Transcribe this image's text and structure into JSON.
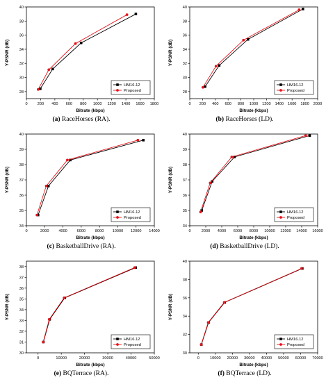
{
  "colors": {
    "hm": "#000000",
    "proposed": "#e8141c",
    "axis": "#000000"
  },
  "chart_data": [
    {
      "type": "line",
      "subplot_letter": "(a)",
      "caption": "RaceHorses (RA).",
      "xlabel": "Bitrate (kbps)",
      "ylabel": "Y-PSNR (dB)",
      "xlim": [
        0,
        1800
      ],
      "ylim": [
        27,
        40
      ],
      "xticks": [
        0,
        200,
        400,
        600,
        800,
        1000,
        1200,
        1400,
        1600,
        1800
      ],
      "yticks": [
        28,
        30,
        32,
        34,
        36,
        38,
        40
      ],
      "legend": "bottom-right",
      "series": [
        {
          "name": "HM16.12",
          "marker": "square",
          "x": [
            195,
            370,
            770,
            1540
          ],
          "y": [
            28.4,
            31.2,
            34.9,
            39.0
          ]
        },
        {
          "name": "Proposed",
          "marker": "circle",
          "x": [
            165,
            315,
            690,
            1415
          ],
          "y": [
            28.3,
            31.1,
            34.8,
            38.9
          ]
        }
      ]
    },
    {
      "type": "line",
      "subplot_letter": "(b)",
      "caption": "RaceHorses (LD).",
      "xlabel": "Bitrate (kbps)",
      "ylabel": "Y-PSNR (dB)",
      "xlim": [
        0,
        2000
      ],
      "ylim": [
        27,
        40
      ],
      "xticks": [
        0,
        200,
        400,
        600,
        800,
        1000,
        1200,
        1400,
        1600,
        1800,
        2000
      ],
      "yticks": [
        28,
        30,
        32,
        34,
        36,
        38,
        40
      ],
      "legend": "bottom-right",
      "series": [
        {
          "name": "HM16.12",
          "marker": "square",
          "x": [
            240,
            460,
            910,
            1770
          ],
          "y": [
            28.7,
            31.7,
            35.4,
            39.7
          ]
        },
        {
          "name": "Proposed",
          "marker": "circle",
          "x": [
            205,
            410,
            840,
            1710
          ],
          "y": [
            28.6,
            31.6,
            35.3,
            39.6
          ]
        }
      ]
    },
    {
      "type": "line",
      "subplot_letter": "(c)",
      "caption": "BasketballDrive (RA).",
      "xlabel": "Bitrate (kbps)",
      "ylabel": "Y-PSNR (dB)",
      "xlim": [
        0,
        14000
      ],
      "ylim": [
        34,
        40
      ],
      "xticks": [
        0,
        2000,
        4000,
        6000,
        8000,
        10000,
        12000,
        14000
      ],
      "yticks": [
        34,
        35,
        36,
        37,
        38,
        39,
        40
      ],
      "legend": "bottom-right",
      "series": [
        {
          "name": "HM16.12",
          "marker": "square",
          "x": [
            1280,
            2410,
            4800,
            12800
          ],
          "y": [
            34.7,
            36.6,
            38.3,
            39.6
          ]
        },
        {
          "name": "Proposed",
          "marker": "circle",
          "x": [
            1150,
            2170,
            4480,
            12200
          ],
          "y": [
            34.7,
            36.6,
            38.3,
            39.6
          ]
        }
      ]
    },
    {
      "type": "line",
      "subplot_letter": "(d)",
      "caption": "BasketballDrive (LD).",
      "xlabel": "Bitrate (kbps)",
      "ylabel": "Y-PSNR (dB)",
      "xlim": [
        0,
        16000
      ],
      "ylim": [
        34,
        40
      ],
      "xticks": [
        0,
        2000,
        4000,
        6000,
        8000,
        10000,
        12000,
        14000,
        16000
      ],
      "yticks": [
        34,
        35,
        36,
        37,
        38,
        39,
        40
      ],
      "legend": "bottom-right",
      "series": [
        {
          "name": "HM16.12",
          "marker": "square",
          "x": [
            1500,
            2800,
            5600,
            15000
          ],
          "y": [
            35.0,
            36.9,
            38.5,
            39.9
          ]
        },
        {
          "name": "Proposed",
          "marker": "circle",
          "x": [
            1350,
            2550,
            5250,
            14500
          ],
          "y": [
            34.9,
            36.8,
            38.5,
            39.9
          ]
        }
      ]
    },
    {
      "type": "line",
      "subplot_letter": "(e)",
      "caption": "BQTerrace (RA).",
      "xlabel": "Bitrate (kbps)",
      "ylabel": "Y-PSNR (dB)",
      "xlim": [
        -5000,
        50000
      ],
      "ylim": [
        30,
        38.5
      ],
      "xticks": [
        0,
        10000,
        20000,
        30000,
        40000,
        50000
      ],
      "yticks": [
        30,
        31,
        32,
        33,
        34,
        35,
        36,
        37,
        38
      ],
      "legend": "bottom-right",
      "series": [
        {
          "name": "HM16.12",
          "marker": "square",
          "x": [
            2300,
            5000,
            11500,
            42000
          ],
          "y": [
            31.0,
            33.1,
            35.1,
            37.9
          ]
        },
        {
          "name": "Proposed",
          "marker": "circle",
          "x": [
            2200,
            4800,
            11200,
            41500
          ],
          "y": [
            31.0,
            33.1,
            35.1,
            37.9
          ]
        }
      ]
    },
    {
      "type": "line",
      "subplot_letter": "(f)",
      "caption": "BQTerrace (LD).",
      "xlabel": "Bitrate (kbps)",
      "ylabel": "Y-PSNR (dB)",
      "xlim": [
        -5000,
        70000
      ],
      "ylim": [
        30,
        40
      ],
      "xticks": [
        0,
        10000,
        20000,
        30000,
        40000,
        50000,
        60000,
        70000
      ],
      "yticks": [
        30,
        32,
        34,
        36,
        38,
        40
      ],
      "legend": "bottom-right",
      "series": [
        {
          "name": "HM16.12",
          "marker": "square",
          "x": [
            1800,
            6000,
            15500,
            61000
          ],
          "y": [
            30.9,
            33.3,
            35.5,
            39.2
          ]
        },
        {
          "name": "Proposed",
          "marker": "circle",
          "x": [
            1700,
            5800,
            15200,
            60500
          ],
          "y": [
            30.9,
            33.3,
            35.5,
            39.2
          ]
        }
      ]
    }
  ]
}
